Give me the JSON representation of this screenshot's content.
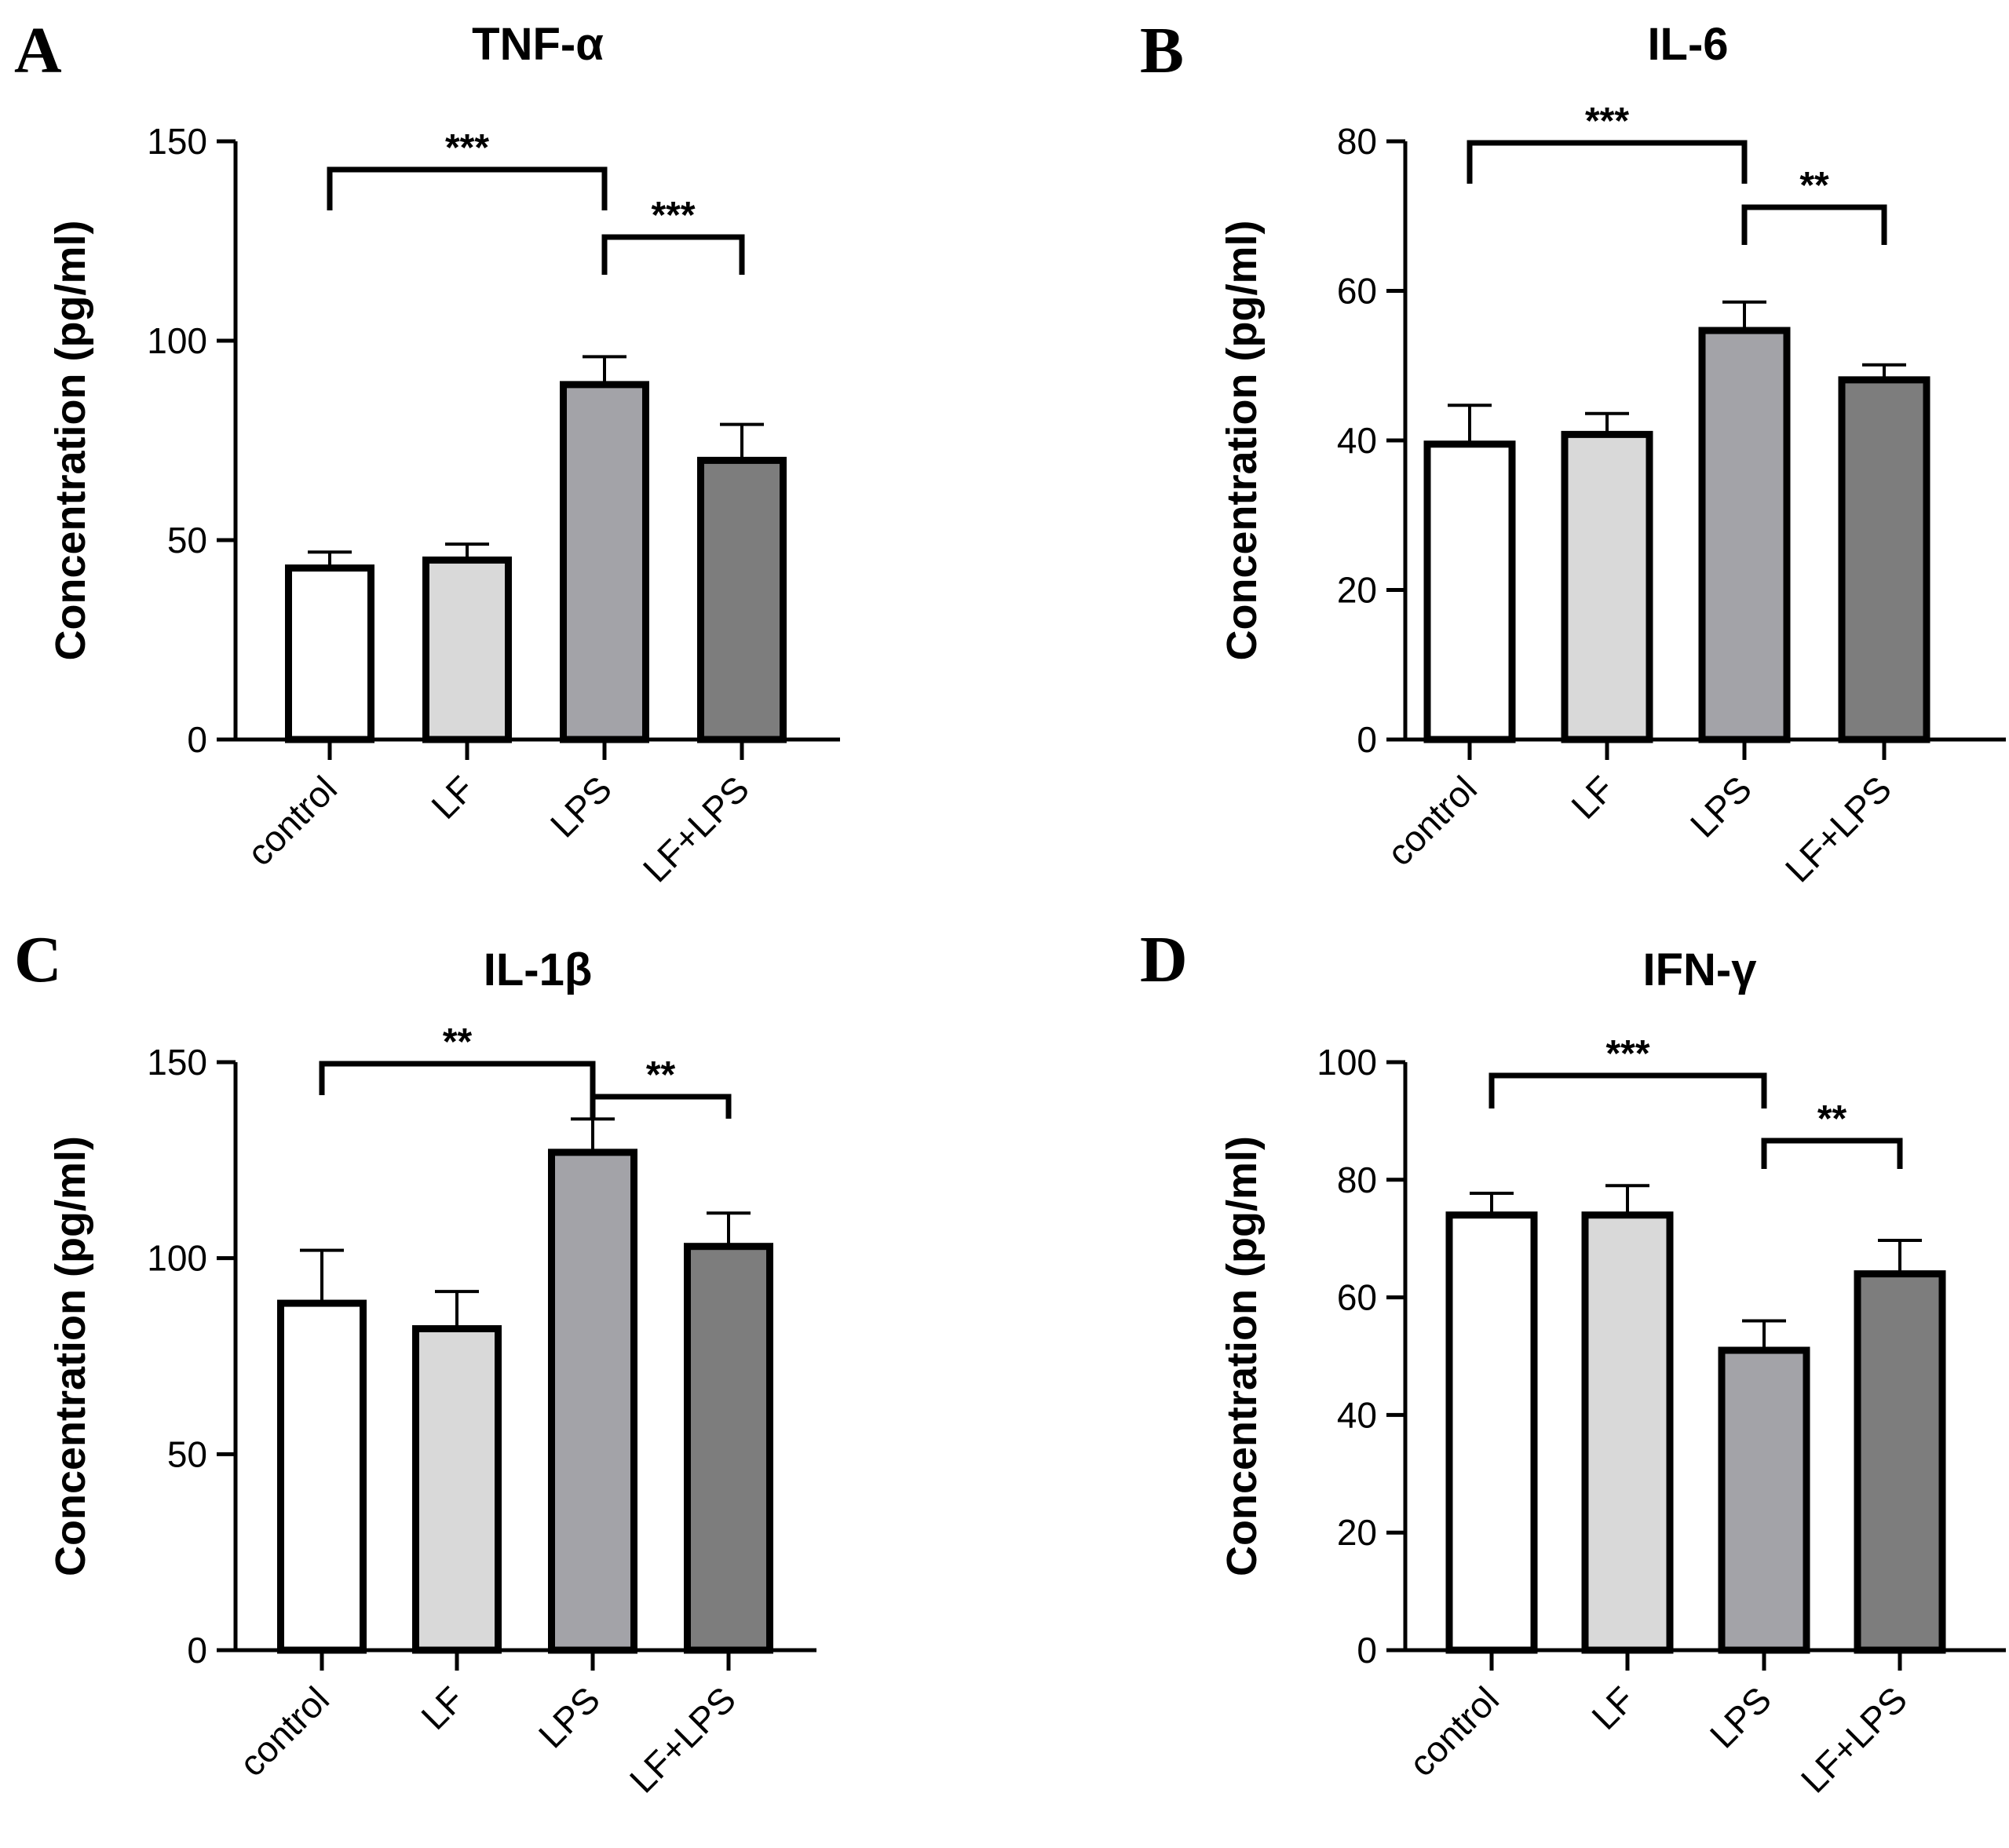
{
  "figure": {
    "colors": {
      "control": "#ffffff",
      "LF": "#d9d9d9",
      "LPS": "#a3a3a8",
      "LF+LPS": "#7d7d7d",
      "stroke": "#000000"
    }
  },
  "chart_data": [
    {
      "panel": "A",
      "type": "bar",
      "title": "TNF-α",
      "ylabel": "Concentration (pg/ml)",
      "xlabel": "",
      "categories": [
        "control",
        "LF",
        "LPS",
        "LF+LPS"
      ],
      "values": [
        43,
        45,
        89,
        70
      ],
      "errors": [
        4,
        4,
        7,
        9
      ],
      "ylim": [
        0,
        150
      ],
      "yticks": [
        0,
        50,
        100,
        150
      ],
      "significance": [
        {
          "from": 0,
          "to": 2,
          "label": "***",
          "level": 0
        },
        {
          "from": 2,
          "to": 3,
          "label": "***",
          "level": 1
        }
      ]
    },
    {
      "panel": "B",
      "type": "bar",
      "title": "IL-6",
      "ylabel": "Concentration (pg/ml)",
      "xlabel": "",
      "categories": [
        "control",
        "LF",
        "LPS",
        "LF+LPS"
      ],
      "values": [
        39.5,
        40.8,
        54.7,
        48.1
      ],
      "errors": [
        5.2,
        2.8,
        3.8,
        2.0
      ],
      "ylim": [
        0,
        80
      ],
      "yticks": [
        0,
        20,
        40,
        60,
        80
      ],
      "significance": [
        {
          "from": 0,
          "to": 2,
          "label": "***",
          "level": 0
        },
        {
          "from": 2,
          "to": 3,
          "label": "**",
          "level": 1
        }
      ]
    },
    {
      "panel": "C",
      "type": "bar",
      "title": "IL-1β",
      "ylabel": "Concentration (pg/ml)",
      "xlabel": "",
      "categories": [
        "control",
        "LF",
        "LPS",
        "LF+LPS"
      ],
      "values": [
        88.5,
        82,
        127,
        103
      ],
      "errors": [
        13.5,
        9.5,
        8.5,
        8.5
      ],
      "ylim": [
        0,
        150
      ],
      "yticks": [
        0,
        50,
        100,
        150
      ],
      "significance": [
        {
          "from": 0,
          "to": 2,
          "label": "**",
          "level": 0
        },
        {
          "from": 2,
          "to": 3,
          "label": "**",
          "level": 1
        }
      ]
    },
    {
      "panel": "D",
      "type": "bar",
      "title": "IFN-γ",
      "ylabel": "Concentration (pg/ml)",
      "xlabel": "",
      "categories": [
        "control",
        "LF",
        "LPS",
        "LF+LPS"
      ],
      "values": [
        74,
        74,
        51,
        64
      ],
      "errors": [
        3.7,
        5,
        5,
        5.7
      ],
      "ylim": [
        0,
        100
      ],
      "yticks": [
        0,
        20,
        40,
        60,
        80,
        100
      ],
      "significance": [
        {
          "from": 0,
          "to": 2,
          "label": "***",
          "level": 0
        },
        {
          "from": 2,
          "to": 3,
          "label": "**",
          "level": 1
        }
      ]
    }
  ]
}
